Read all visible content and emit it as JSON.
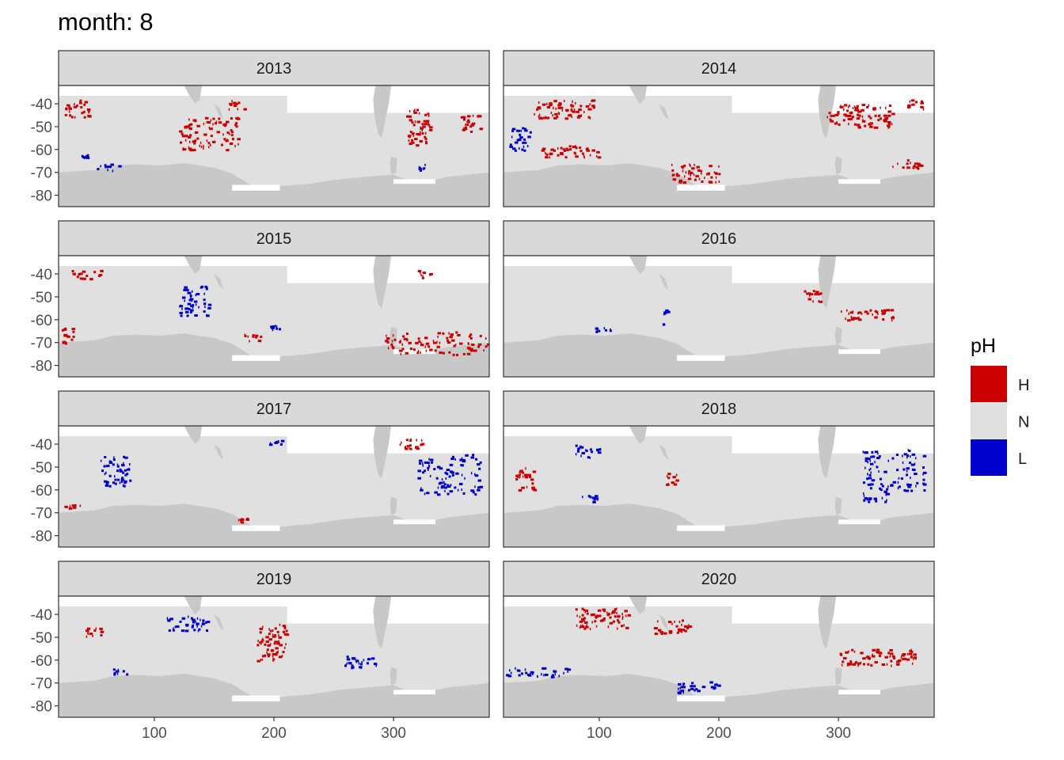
{
  "title": "month: 8",
  "chart_data": {
    "type": "heatmap",
    "title": "month: 8",
    "facet_by": "year",
    "xlim": [
      20,
      380
    ],
    "ylim": [
      -85,
      -32
    ],
    "x_ticks": [
      100,
      200,
      300
    ],
    "y_ticks": [
      -40,
      -50,
      -60,
      -70,
      -80
    ],
    "x_tick_labels": [
      "100",
      "200",
      "300"
    ],
    "y_tick_labels": [
      "-40",
      "-50",
      "-60",
      "-70",
      "-80"
    ],
    "legend": {
      "title": "pH",
      "position": "right",
      "entries": [
        {
          "label": "H",
          "color": "#cc0000"
        },
        {
          "label": "N",
          "color": "#e0e0e0"
        },
        {
          "label": "L",
          "color": "#0000cc"
        }
      ]
    },
    "colors": {
      "land": "#c8c8c8",
      "ocean_normal": "#e0e0e0",
      "missing": "#ffffff",
      "H": "#cc0000",
      "L": "#0000cc"
    },
    "panels": [
      {
        "year": "2013",
        "H_regions": [
          [
            25,
            45,
            -46,
            -38
          ],
          [
            120,
            170,
            -60,
            -45
          ],
          [
            160,
            175,
            -42,
            -38
          ],
          [
            310,
            330,
            -58,
            -42
          ],
          [
            355,
            372,
            -52,
            -44
          ]
        ],
        "L_regions": [
          [
            38,
            44,
            -64,
            -62
          ],
          [
            52,
            70,
            -69,
            -66
          ],
          [
            320,
            326,
            -69,
            -66
          ]
        ]
      },
      {
        "year": "2014",
        "H_regions": [
          [
            45,
            95,
            -46,
            -38
          ],
          [
            50,
            100,
            -63,
            -58
          ],
          [
            160,
            200,
            -74,
            -66
          ],
          [
            290,
            345,
            -50,
            -40
          ],
          [
            345,
            370,
            -68,
            -64
          ],
          [
            355,
            372,
            -42,
            -38
          ]
        ],
        "L_regions": [
          [
            24,
            42,
            -60,
            -50
          ]
        ]
      },
      {
        "year": "2015",
        "H_regions": [
          [
            30,
            55,
            -42,
            -38
          ],
          [
            22,
            35,
            -70,
            -63
          ],
          [
            175,
            190,
            -70,
            -66
          ],
          [
            290,
            380,
            -75,
            -65
          ],
          [
            320,
            330,
            -42,
            -38
          ]
        ],
        "L_regions": [
          [
            120,
            145,
            -58,
            -45
          ],
          [
            195,
            205,
            -64,
            -62
          ]
        ]
      },
      {
        "year": "2016",
        "H_regions": [
          [
            270,
            285,
            -52,
            -46
          ],
          [
            300,
            345,
            -60,
            -55
          ]
        ],
        "L_regions": [
          [
            152,
            158,
            -62,
            -54
          ],
          [
            95,
            110,
            -65,
            -63
          ]
        ]
      },
      {
        "year": "2017",
        "H_regions": [
          [
            305,
            325,
            -42,
            -36
          ],
          [
            22,
            40,
            -68,
            -66
          ],
          [
            170,
            178,
            -74,
            -72
          ]
        ],
        "L_regions": [
          [
            55,
            80,
            -58,
            -45
          ],
          [
            320,
            372,
            -62,
            -44
          ],
          [
            195,
            210,
            -40,
            -38
          ]
        ]
      },
      {
        "year": "2018",
        "H_regions": [
          [
            30,
            45,
            -60,
            -50
          ],
          [
            155,
            165,
            -58,
            -52
          ]
        ],
        "L_regions": [
          [
            80,
            100,
            -46,
            -40
          ],
          [
            85,
            105,
            -65,
            -62
          ],
          [
            320,
            372,
            -60,
            -42
          ],
          [
            320,
            340,
            -65,
            -60
          ]
        ]
      },
      {
        "year": "2019",
        "H_regions": [
          [
            185,
            210,
            -60,
            -44
          ],
          [
            40,
            55,
            -50,
            -45
          ]
        ],
        "L_regions": [
          [
            110,
            145,
            -47,
            -40
          ],
          [
            255,
            285,
            -63,
            -58
          ],
          [
            65,
            80,
            -66,
            -63
          ]
        ]
      },
      {
        "year": "2020",
        "H_regions": [
          [
            80,
            125,
            -46,
            -37
          ],
          [
            145,
            175,
            -48,
            -42
          ],
          [
            300,
            365,
            -62,
            -55
          ]
        ],
        "L_regions": [
          [
            22,
            75,
            -67,
            -63
          ],
          [
            165,
            200,
            -74,
            -69
          ]
        ]
      }
    ]
  }
}
